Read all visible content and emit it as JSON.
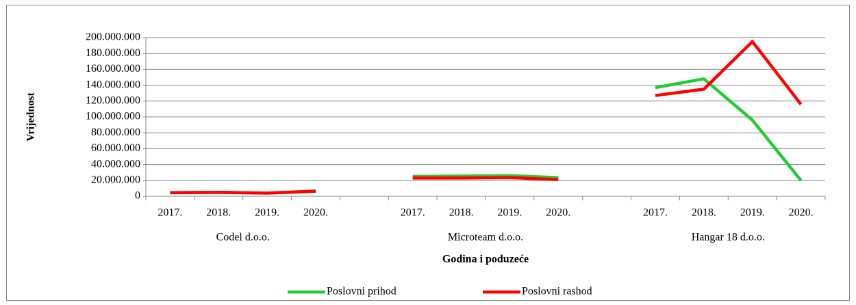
{
  "chart_data": {
    "type": "line",
    "ylabel": "Vrijednost",
    "xlabel": "Godina i poduzeće",
    "categories": [
      "2017.",
      "2018.",
      "2019.",
      "2020.",
      null,
      "2017.",
      "2018.",
      "2019.",
      "2020.",
      null,
      "2017.",
      "2018.",
      "2019.",
      "2020."
    ],
    "groups": [
      "Codel d.o.o.",
      "Microteam d.o.o.",
      "Hangar 18 d.o.o."
    ],
    "series": [
      {
        "name": "Poslovni prihod",
        "color": "#22cc33",
        "values": [
          4500000,
          5000000,
          4000000,
          6500000,
          null,
          25000000,
          25500000,
          26000000,
          23500000,
          null,
          137000000,
          148000000,
          96000000,
          20000000
        ]
      },
      {
        "name": "Poslovni rashod",
        "color": "#ff0000",
        "values": [
          4500000,
          5000000,
          4000000,
          6500000,
          null,
          23000000,
          23000000,
          23500000,
          21000000,
          null,
          127000000,
          135000000,
          195000000,
          116000000
        ]
      }
    ],
    "ylim": [
      0,
      200000000
    ],
    "yticks": [
      0,
      {
        "value": 20000000,
        "label": "20.000.000"
      },
      {
        "value": 40000000,
        "label": "40.000.000"
      },
      {
        "value": 60000000,
        "label": "60.000.000"
      },
      {
        "value": 80000000,
        "label": "80.000.000"
      },
      {
        "value": 100000000,
        "label": "100.000.000"
      },
      {
        "value": 120000000,
        "label": "120.000.000"
      },
      {
        "value": 140000000,
        "label": "140.000.000"
      },
      {
        "value": 160000000,
        "label": "160.000.000"
      },
      {
        "value": 180000000,
        "label": "180.000.000"
      },
      {
        "value": 200000000,
        "label": "200.000.000"
      }
    ],
    "grid": true,
    "legend": "bottom"
  }
}
